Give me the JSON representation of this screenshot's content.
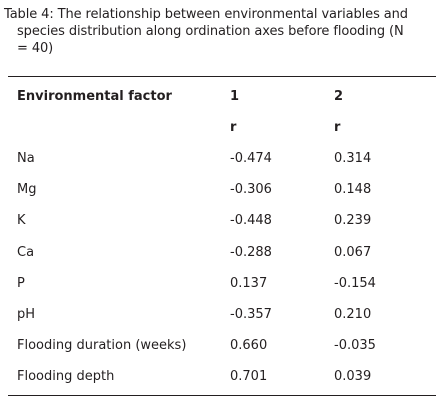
{
  "caption": {
    "line1": "Table 4: The relationship between environmental variables and",
    "line2": "species distribution along ordination axes before flooding (N",
    "line3": "= 40)"
  },
  "table": {
    "header": {
      "factor": "Environmental factor",
      "axis1": "1",
      "axis2": "2",
      "stat1": "r",
      "stat2": "r"
    },
    "rows": [
      {
        "factor": "Na",
        "axis1": "-0.474",
        "axis2": "0.314"
      },
      {
        "factor": "Mg",
        "axis1": "-0.306",
        "axis2": "0.148"
      },
      {
        "factor": "K",
        "axis1": "-0.448",
        "axis2": "0.239"
      },
      {
        "factor": "Ca",
        "axis1": "-0.288",
        "axis2": "0.067"
      },
      {
        "factor": "P",
        "axis1": "0.137",
        "axis2": "-0.154"
      },
      {
        "factor": "pH",
        "axis1": "-0.357",
        "axis2": "0.210"
      },
      {
        "factor": "Flooding duration (weeks)",
        "axis1": "0.660",
        "axis2": "-0.035"
      },
      {
        "factor": "Flooding depth",
        "axis1": "0.701",
        "axis2": "0.039"
      }
    ]
  }
}
